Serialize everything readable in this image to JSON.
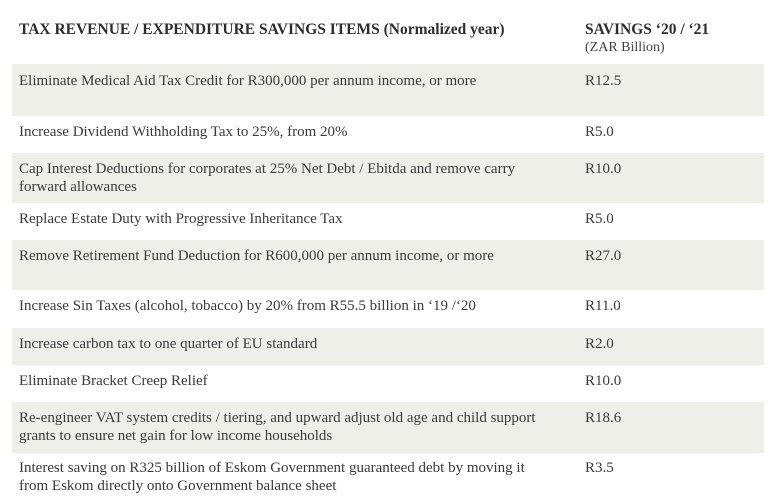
{
  "header": {
    "left": "TAX REVENUE / EXPENDITURE SAVINGS ITEMS (Normalized year)",
    "right_title": "SAVINGS ‘20 / ‘21",
    "right_sub": "(ZAR Billion)"
  },
  "rows": [
    {
      "item": "Eliminate Medical Aid Tax Credit for R300,000 per annum income, or more",
      "value": "R12.5"
    },
    {
      "item": "Increase Dividend Withholding Tax to 25%, from 20%",
      "value": "R5.0"
    },
    {
      "item": "Cap Interest Deductions for corporates at 25% Net Debt / Ebitda and remove carry forward allowances",
      "value": "R10.0"
    },
    {
      "item": "Replace Estate Duty with Progressive Inheritance Tax",
      "value": "R5.0"
    },
    {
      "item": "Remove Retirement Fund Deduction for R600,000 per annum income, or more",
      "value": "R27.0"
    },
    {
      "item": "Increase Sin Taxes (alcohol, tobacco) by 20% from R55.5 billion in ‘19 /‘20",
      "value": "R11.0"
    },
    {
      "item": "Increase carbon tax to one quarter of EU standard",
      "value": "R2.0"
    },
    {
      "item": "Eliminate Bracket Creep Relief",
      "value": "R10.0"
    },
    {
      "item": "Re-engineer VAT system credits / tiering, and upward adjust old age and child support grants to ensure net gain for low income households",
      "value": "R18.6"
    },
    {
      "item": "Interest saving on R325 billion of Eskom Government guaranteed debt by moving it from Eskom directly onto Government balance sheet",
      "value": "R3.5"
    }
  ]
}
